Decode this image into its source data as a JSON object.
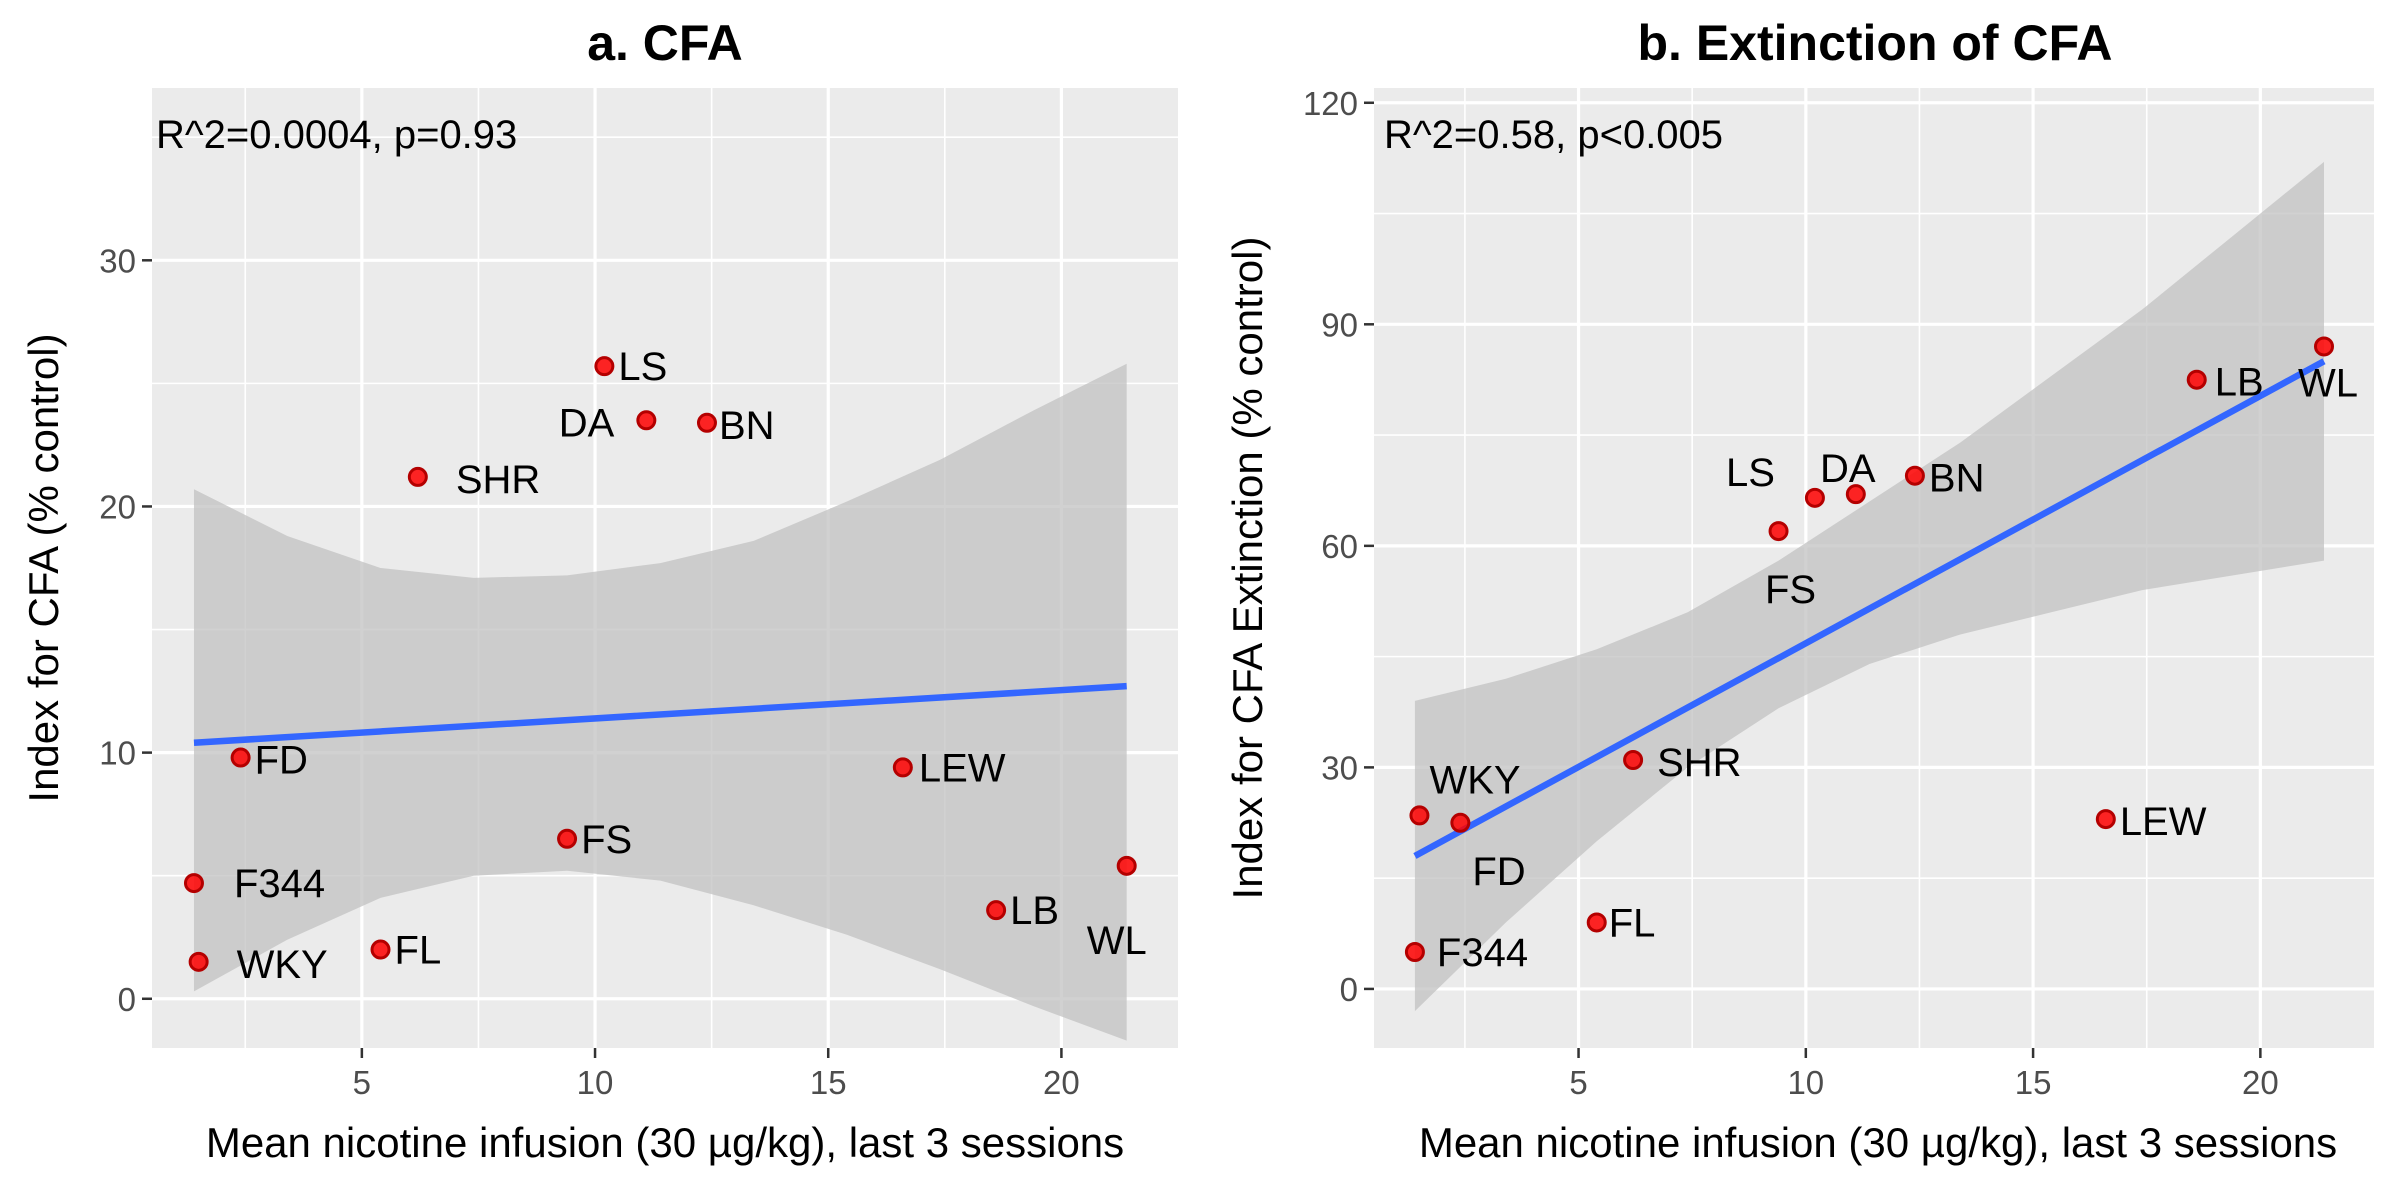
{
  "colors": {
    "panel_background": "#ebebeb",
    "grid": "#ffffff",
    "point_fill": "#ff0000",
    "point_stroke": "#b40000",
    "regression_line": "#3366ff",
    "confidence_band": "#c2c2c2",
    "tick": "#333333"
  },
  "chart_data": [
    {
      "type": "scatter",
      "title": "a. CFA",
      "xlabel": "Mean nicotine infusion (30 µg/kg), last 3 sessions",
      "ylabel": "Index for CFA (% control)",
      "xlim": [
        0.5,
        22.5
      ],
      "ylim": [
        -2,
        37
      ],
      "xticks": [
        5,
        10,
        15,
        20
      ],
      "yticks": [
        0,
        10,
        20,
        30
      ],
      "grid": true,
      "annotation": "R^2=0.0004, p=0.93",
      "points": [
        {
          "label": "LS",
          "x": 10.2,
          "y": 25.7
        },
        {
          "label": "DA",
          "x": 11.1,
          "y": 23.5
        },
        {
          "label": "BN",
          "x": 12.4,
          "y": 23.4
        },
        {
          "label": "SHR",
          "x": 6.2,
          "y": 21.2
        },
        {
          "label": "FD",
          "x": 2.4,
          "y": 9.8
        },
        {
          "label": "LEW",
          "x": 16.6,
          "y": 9.4
        },
        {
          "label": "FS",
          "x": 9.4,
          "y": 6.5
        },
        {
          "label": "F344",
          "x": 1.4,
          "y": 4.7
        },
        {
          "label": "WL",
          "x": 21.4,
          "y": 5.4
        },
        {
          "label": "LB",
          "x": 18.6,
          "y": 3.6
        },
        {
          "label": "FL",
          "x": 5.4,
          "y": 2.0
        },
        {
          "label": "WKY",
          "x": 1.5,
          "y": 1.5
        }
      ],
      "regression": {
        "x": [
          1.4,
          21.4
        ],
        "y": [
          10.4,
          12.7
        ]
      },
      "confidence_band": {
        "x": [
          1.4,
          3.4,
          5.4,
          7.4,
          9.4,
          11.4,
          13.4,
          15.4,
          17.4,
          19.4,
          21.4
        ],
        "lower": [
          0.3,
          2.4,
          4.1,
          5.0,
          5.2,
          4.8,
          3.8,
          2.6,
          1.2,
          -0.3,
          -1.7
        ],
        "upper": [
          20.7,
          18.8,
          17.5,
          17.1,
          17.2,
          17.7,
          18.6,
          20.2,
          21.9,
          23.9,
          25.8
        ]
      }
    },
    {
      "type": "scatter",
      "title": "b. Extinction of CFA",
      "xlabel": "Mean nicotine infusion (30 µg/kg), last 3 sessions",
      "ylabel": "Index for CFA Extinction  (% control)",
      "xlim": [
        0.5,
        22.5
      ],
      "ylim": [
        -8,
        122
      ],
      "xticks": [
        5,
        10,
        15,
        20
      ],
      "yticks": [
        0,
        30,
        60,
        90,
        120
      ],
      "grid": true,
      "annotation": "R^2=0.58, p<0.005",
      "points": [
        {
          "label": "WL",
          "x": 21.4,
          "y": 87.0
        },
        {
          "label": "LB",
          "x": 18.6,
          "y": 82.5
        },
        {
          "label": "BN",
          "x": 12.4,
          "y": 69.5
        },
        {
          "label": "DA",
          "x": 11.1,
          "y": 67.0
        },
        {
          "label": "LS",
          "x": 10.2,
          "y": 66.5
        },
        {
          "label": "FS",
          "x": 9.4,
          "y": 62.0
        },
        {
          "label": "SHR",
          "x": 6.2,
          "y": 31.0
        },
        {
          "label": "WKY",
          "x": 1.5,
          "y": 23.5
        },
        {
          "label": "FD",
          "x": 2.4,
          "y": 22.5
        },
        {
          "label": "LEW",
          "x": 16.6,
          "y": 23.0
        },
        {
          "label": "FL",
          "x": 5.4,
          "y": 9.0
        },
        {
          "label": "F344",
          "x": 1.4,
          "y": 5.0
        }
      ],
      "regression": {
        "x": [
          1.4,
          21.4
        ],
        "y": [
          18.0,
          85.0
        ]
      },
      "confidence_band": {
        "x": [
          1.4,
          3.4,
          5.4,
          7.4,
          9.4,
          11.4,
          13.4,
          15.4,
          17.4,
          19.4,
          21.4
        ],
        "lower": [
          -3.0,
          9.0,
          20.0,
          30.0,
          38.0,
          44.0,
          48.0,
          51.0,
          54.0,
          56.0,
          58.0
        ],
        "upper": [
          39.0,
          42.0,
          46.0,
          51.0,
          58.0,
          66.0,
          74.0,
          83.0,
          92.0,
          102.0,
          112.0
        ]
      }
    }
  ]
}
